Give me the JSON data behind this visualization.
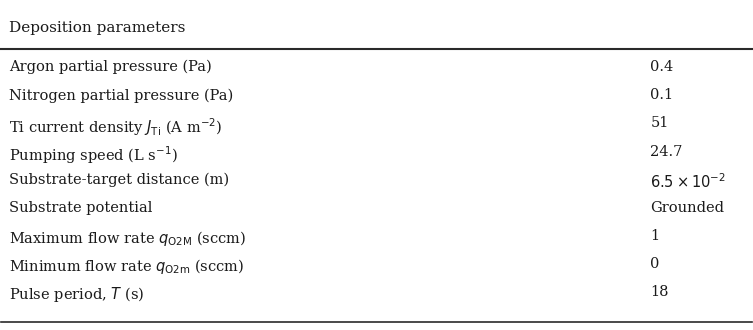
{
  "title": "Deposition parameters",
  "rows": [
    [
      "Argon partial pressure (Pa)",
      "0.4"
    ],
    [
      "Nitrogen partial pressure (Pa)",
      "0.1"
    ],
    [
      "Ti current density $J_\\mathrm{Ti}$ (A m$^{-2}$)",
      "51"
    ],
    [
      "Pumping speed (L s$^{-1}$)",
      "24.7"
    ],
    [
      "Substrate-target distance (m)",
      "$6.5 \\times 10^{-2}$"
    ],
    [
      "Substrate potential",
      "Grounded"
    ],
    [
      "Maximum flow rate $q_\\mathrm{O2M}$ (sccm)",
      "1"
    ],
    [
      "Minimum flow rate $q_\\mathrm{O2m}$ (sccm)",
      "0"
    ],
    [
      "Pulse period, $T$ (s)",
      "18"
    ]
  ],
  "bg_color": "#ffffff",
  "text_color": "#1a1a1a",
  "title_fontsize": 11,
  "body_fontsize": 10.5,
  "line_color": "#2a2a2a"
}
